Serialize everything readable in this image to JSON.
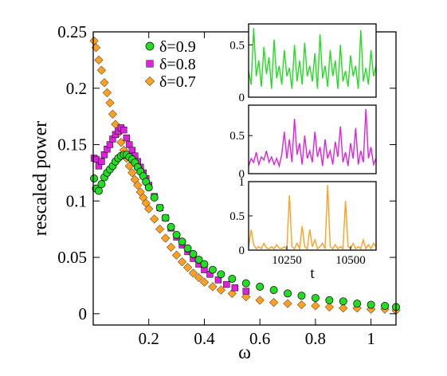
{
  "chart_data": [
    {
      "type": "scatter",
      "xlabel": "ω",
      "ylabel": "rescaled power",
      "xlim": [
        0,
        1.09
      ],
      "ylim": [
        -0.01,
        0.25
      ],
      "xticks": [
        "0.2",
        "0.4",
        "0.6",
        "0.8",
        "1"
      ],
      "xtick_values": [
        0.2,
        0.4,
        0.6,
        0.8,
        1.0
      ],
      "yticks": [
        "0",
        "0.05",
        "0.1",
        "0.15",
        "0.2",
        "0.25"
      ],
      "ytick_values": [
        0,
        0.05,
        0.1,
        0.15,
        0.2,
        0.25
      ],
      "legend_position": "top-center",
      "series": [
        {
          "name": "δ=0.9",
          "marker": "circle",
          "color": "#22dd22",
          "x": [
            0.003,
            0.01,
            0.02,
            0.03,
            0.04,
            0.05,
            0.06,
            0.07,
            0.08,
            0.09,
            0.1,
            0.11,
            0.12,
            0.13,
            0.14,
            0.15,
            0.16,
            0.17,
            0.18,
            0.19,
            0.2,
            0.22,
            0.24,
            0.26,
            0.28,
            0.3,
            0.32,
            0.34,
            0.36,
            0.38,
            0.4,
            0.43,
            0.46,
            0.5,
            0.55,
            0.6,
            0.65,
            0.7,
            0.75,
            0.8,
            0.85,
            0.9,
            0.95,
            1.0,
            1.05,
            1.09
          ],
          "y": [
            0.12,
            0.111,
            0.109,
            0.115,
            0.121,
            0.125,
            0.128,
            0.131,
            0.135,
            0.138,
            0.14,
            0.141,
            0.141,
            0.139,
            0.137,
            0.134,
            0.13,
            0.126,
            0.122,
            0.117,
            0.112,
            0.103,
            0.094,
            0.085,
            0.077,
            0.07,
            0.064,
            0.058,
            0.053,
            0.048,
            0.044,
            0.039,
            0.035,
            0.031,
            0.027,
            0.024,
            0.021,
            0.018,
            0.016,
            0.014,
            0.012,
            0.011,
            0.009,
            0.008,
            0.007,
            0.006
          ]
        },
        {
          "name": "δ=0.8",
          "marker": "square",
          "color": "#dd22dd",
          "x": [
            0.003,
            0.01,
            0.02,
            0.03,
            0.04,
            0.05,
            0.06,
            0.07,
            0.08,
            0.09,
            0.1,
            0.11,
            0.12,
            0.13,
            0.14,
            0.15,
            0.16,
            0.17,
            0.18,
            0.19,
            0.2,
            0.22,
            0.24,
            0.26,
            0.28,
            0.3,
            0.32,
            0.34,
            0.36,
            0.38,
            0.4,
            0.42,
            0.45,
            0.48,
            0.51,
            0.55
          ],
          "y": [
            0.138,
            0.137,
            0.131,
            0.135,
            0.141,
            0.146,
            0.15,
            0.155,
            0.159,
            0.162,
            0.165,
            0.163,
            0.156,
            0.15,
            0.145,
            0.14,
            0.135,
            0.13,
            0.125,
            0.12,
            0.114,
            0.104,
            0.094,
            0.085,
            0.076,
            0.068,
            0.061,
            0.055,
            0.049,
            0.044,
            0.039,
            0.035,
            0.03,
            0.026,
            0.023,
            0.02
          ]
        },
        {
          "name": "δ=0.7",
          "marker": "diamond",
          "color": "#ffa020",
          "x": [
            0.003,
            0.01,
            0.02,
            0.03,
            0.04,
            0.05,
            0.06,
            0.07,
            0.08,
            0.09,
            0.1,
            0.11,
            0.12,
            0.13,
            0.14,
            0.15,
            0.16,
            0.17,
            0.18,
            0.19,
            0.2,
            0.22,
            0.24,
            0.26,
            0.28,
            0.3,
            0.32,
            0.34,
            0.36,
            0.38,
            0.4,
            0.43,
            0.46,
            0.5,
            0.55,
            0.6,
            0.65,
            0.7,
            0.75,
            0.8,
            0.85,
            0.9,
            0.95,
            1.0,
            1.05,
            1.09
          ],
          "y": [
            0.242,
            0.236,
            0.225,
            0.216,
            0.205,
            0.196,
            0.187,
            0.177,
            0.168,
            0.16,
            0.152,
            0.145,
            0.138,
            0.131,
            0.125,
            0.119,
            0.114,
            0.108,
            0.103,
            0.098,
            0.093,
            0.084,
            0.075,
            0.067,
            0.059,
            0.052,
            0.046,
            0.041,
            0.036,
            0.032,
            0.028,
            0.024,
            0.021,
            0.018,
            0.015,
            0.012,
            0.01,
            0.009,
            0.008,
            0.007,
            0.006,
            0.005,
            0.005,
            0.004,
            0.004,
            0.003
          ]
        }
      ]
    },
    {
      "type": "line",
      "inset": "top",
      "color": "#22dd22",
      "xlim": [
        10100,
        10600
      ],
      "ylim": [
        0,
        0.7
      ],
      "yticks": [
        "0",
        "0.5"
      ],
      "ytick_values": [
        0,
        0.5
      ],
      "x": [
        10100,
        10110,
        10120,
        10130,
        10140,
        10150,
        10160,
        10170,
        10180,
        10190,
        10200,
        10210,
        10220,
        10230,
        10240,
        10250,
        10260,
        10270,
        10280,
        10290,
        10300,
        10310,
        10320,
        10330,
        10340,
        10350,
        10360,
        10370,
        10380,
        10390,
        10400,
        10410,
        10420,
        10430,
        10440,
        10450,
        10460,
        10470,
        10480,
        10490,
        10500,
        10510,
        10520,
        10530,
        10540,
        10550,
        10560,
        10570,
        10580,
        10590,
        10600
      ],
      "y": [
        0.25,
        0.12,
        0.66,
        0.2,
        0.35,
        0.1,
        0.48,
        0.22,
        0.38,
        0.08,
        0.55,
        0.18,
        0.3,
        0.12,
        0.45,
        0.2,
        0.28,
        0.08,
        0.5,
        0.15,
        0.35,
        0.12,
        0.52,
        0.2,
        0.3,
        0.15,
        0.42,
        0.08,
        0.6,
        0.18,
        0.3,
        0.1,
        0.45,
        0.2,
        0.35,
        0.08,
        0.5,
        0.15,
        0.25,
        0.1,
        0.4,
        0.2,
        0.3,
        0.08,
        0.64,
        0.15,
        0.28,
        0.12,
        0.45,
        0.2,
        0.3
      ]
    },
    {
      "type": "line",
      "inset": "middle",
      "color": "#dd22dd",
      "xlim": [
        10100,
        10600
      ],
      "ylim": [
        0,
        0.9
      ],
      "yticks": [
        "0",
        "0.5"
      ],
      "ytick_values": [
        0,
        0.5
      ],
      "x": [
        10100,
        10110,
        10120,
        10130,
        10140,
        10150,
        10160,
        10170,
        10180,
        10190,
        10200,
        10210,
        10220,
        10230,
        10240,
        10250,
        10260,
        10270,
        10280,
        10290,
        10300,
        10310,
        10320,
        10330,
        10340,
        10350,
        10360,
        10370,
        10380,
        10390,
        10400,
        10410,
        10420,
        10430,
        10440,
        10450,
        10460,
        10470,
        10480,
        10490,
        10500,
        10510,
        10520,
        10530,
        10540,
        10550,
        10560,
        10570,
        10580,
        10590,
        10600
      ],
      "y": [
        0.1,
        0.2,
        0.15,
        0.28,
        0.12,
        0.22,
        0.18,
        0.3,
        0.15,
        0.22,
        0.12,
        0.2,
        0.1,
        0.25,
        0.55,
        0.2,
        0.45,
        0.15,
        0.72,
        0.25,
        0.4,
        0.12,
        0.5,
        0.2,
        0.3,
        0.15,
        0.55,
        0.22,
        0.35,
        0.1,
        0.45,
        0.2,
        0.3,
        0.12,
        0.42,
        0.22,
        0.62,
        0.15,
        0.28,
        0.1,
        0.4,
        0.2,
        0.6,
        0.12,
        0.3,
        0.15,
        0.85,
        0.2,
        0.35,
        0.12,
        0.2
      ]
    },
    {
      "type": "line",
      "inset": "bottom",
      "color": "#ffa020",
      "xlabel": "t",
      "xlim": [
        10100,
        10600
      ],
      "ylim": [
        0,
        1
      ],
      "xticks": [
        "10250",
        "10500"
      ],
      "xtick_values": [
        10250,
        10500
      ],
      "yticks": [
        "0",
        "0.5",
        "1"
      ],
      "ytick_values": [
        0,
        0.5,
        1
      ],
      "x": [
        10100,
        10110,
        10120,
        10130,
        10140,
        10150,
        10160,
        10170,
        10180,
        10190,
        10200,
        10210,
        10220,
        10230,
        10240,
        10250,
        10260,
        10270,
        10280,
        10290,
        10300,
        10310,
        10320,
        10330,
        10340,
        10350,
        10360,
        10370,
        10380,
        10390,
        10400,
        10410,
        10420,
        10430,
        10440,
        10450,
        10460,
        10470,
        10480,
        10490,
        10500,
        10510,
        10520,
        10530,
        10540,
        10550,
        10560,
        10570,
        10580,
        10590,
        10600
      ],
      "y": [
        0.05,
        0.3,
        0.08,
        0.02,
        0.05,
        0.02,
        0.1,
        0.03,
        0.02,
        0.05,
        0.02,
        0.08,
        0.03,
        0.02,
        0.05,
        0.02,
        0.8,
        0.05,
        0.02,
        0.1,
        0.02,
        0.35,
        0.05,
        0.02,
        0.3,
        0.05,
        0.15,
        0.02,
        0.05,
        0.1,
        0.02,
        0.95,
        0.05,
        0.02,
        0.08,
        0.02,
        0.05,
        0.02,
        0.72,
        0.05,
        0.02,
        0.1,
        0.02,
        0.05,
        0.02,
        0.15,
        0.02,
        0.08,
        0.02,
        0.1,
        0.05
      ]
    }
  ]
}
